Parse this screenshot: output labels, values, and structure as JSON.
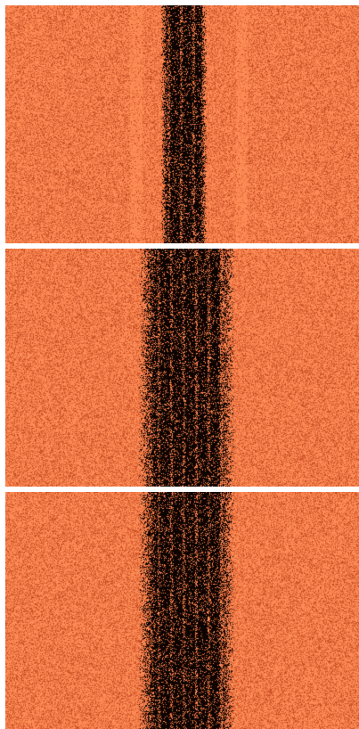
{
  "figure": {
    "panels": [
      {
        "id": "panel-1",
        "noise_base_color": "#ff8a55",
        "speckle_dark_color": "#c2471e",
        "band_color": "#0d0402"
      },
      {
        "id": "panel-2",
        "noise_base_color": "#ff8a55",
        "speckle_dark_color": "#c2471e",
        "band_color": "#0d0402"
      },
      {
        "id": "panel-3",
        "noise_base_color": "#ff8a55",
        "speckle_dark_color": "#c2471e",
        "band_color": "#0d0402"
      }
    ]
  }
}
